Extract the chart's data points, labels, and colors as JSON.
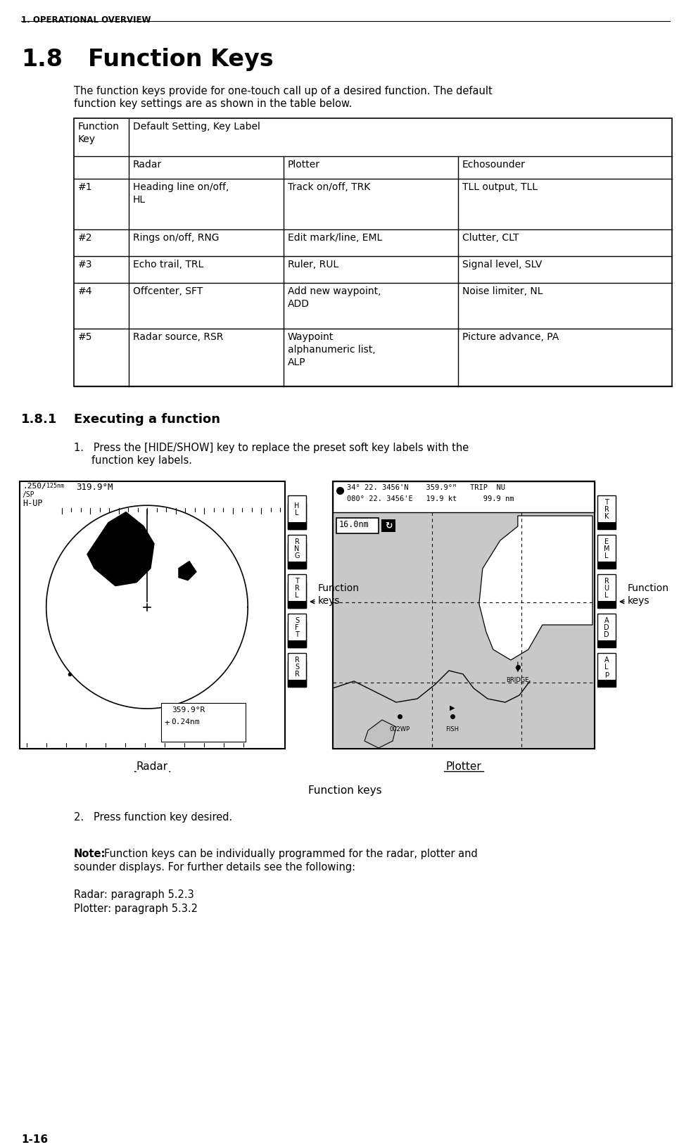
{
  "header": "1. OPERATIONAL OVERVIEW",
  "section_num": "1.8",
  "section_title": "Function Keys",
  "intro_text_l1": "The function keys provide for one-touch call up of a desired function. The default",
  "intro_text_l2": "function key settings are as shown in the table below.",
  "table_header_col0": "Function\nKey",
  "table_header_span": "Default Setting, Key Label",
  "table_subheaders": [
    "Radar",
    "Plotter",
    "Echosounder"
  ],
  "table_rows": [
    [
      "#1",
      "Heading line on/off,\nHL",
      "Track on/off, TRK",
      "TLL output, TLL"
    ],
    [
      "#2",
      "Rings on/off, RNG",
      "Edit mark/line, EML",
      "Clutter, CLT"
    ],
    [
      "#3",
      "Echo trail, TRL",
      "Ruler, RUL",
      "Signal level, SLV"
    ],
    [
      "#4",
      "Offcenter, SFT",
      "Add new waypoint,\nADD",
      "Noise limiter, NL"
    ],
    [
      "#5",
      "Radar source, RSR",
      "Waypoint\nalphanumeric list,\nALP",
      "Picture advance, PA"
    ]
  ],
  "subsection_num": "1.8.1",
  "subsection_title": "Executing a function",
  "step1_text_l1": "Press the [HIDE/SHOW] key to replace the preset soft key labels with the",
  "step1_text_l2": "function key labels.",
  "step2_text": "Press function key desired.",
  "note_label": "Note:",
  "note_text_l1": "Function keys can be individually programmed for the radar, plotter and",
  "note_text_l2": "sounder displays. For further details see the following:",
  "note_ref1": "Radar: paragraph 5.2.3",
  "note_ref2": "Plotter: paragraph 5.3.2",
  "fig_caption": "Function keys",
  "radar_label": "Radar",
  "plotter_label": "Plotter",
  "footer": "1-16",
  "bg_color": "#ffffff",
  "text_color": "#000000"
}
